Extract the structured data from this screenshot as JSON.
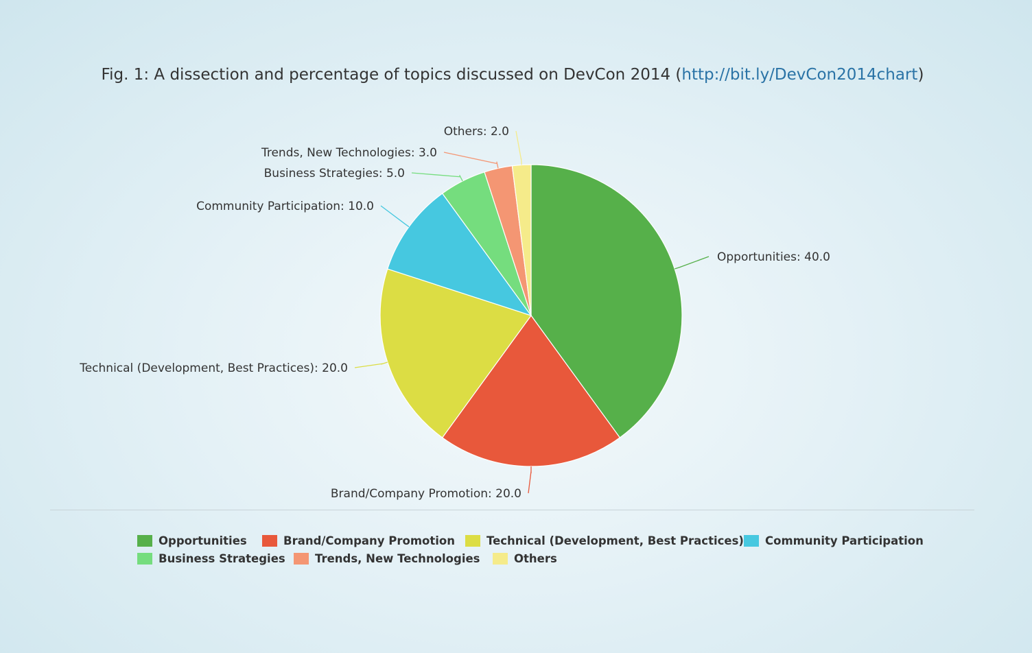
{
  "caption": {
    "prefix": "Fig. 1: A dissection and percentage of topics discussed on DevCon 2014 (",
    "link_text": "http://bit.ly/DevCon2014chart",
    "suffix": ")"
  },
  "chart_data": {
    "type": "pie",
    "title": "",
    "start_angle_deg": 0,
    "direction": "clockwise",
    "legend_placement": "bottom",
    "slices": [
      {
        "name": "Opportunities",
        "value": 40.0,
        "label": "Opportunities: 40.0",
        "color": "#56b04a"
      },
      {
        "name": "Brand/Company Promotion",
        "value": 20.0,
        "label": "Brand/Company Promotion: 20.0",
        "color": "#e8583b"
      },
      {
        "name": "Technical (Development, Best Practices)",
        "value": 20.0,
        "label": "Technical (Development, Best Practices): 20.0",
        "color": "#dcdd44"
      },
      {
        "name": "Community Participation",
        "value": 10.0,
        "label": "Community Participation: 10.0",
        "color": "#46c8e0"
      },
      {
        "name": "Business Strategies",
        "value": 5.0,
        "label": "Business Strategies: 5.0",
        "color": "#75dd7e"
      },
      {
        "name": "Trends, New Technologies",
        "value": 3.0,
        "label": "Trends, New Technologies: 3.0",
        "color": "#f49673"
      },
      {
        "name": "Others",
        "value": 2.0,
        "label": "Others: 2.0",
        "color": "#f5eb8a"
      }
    ]
  }
}
